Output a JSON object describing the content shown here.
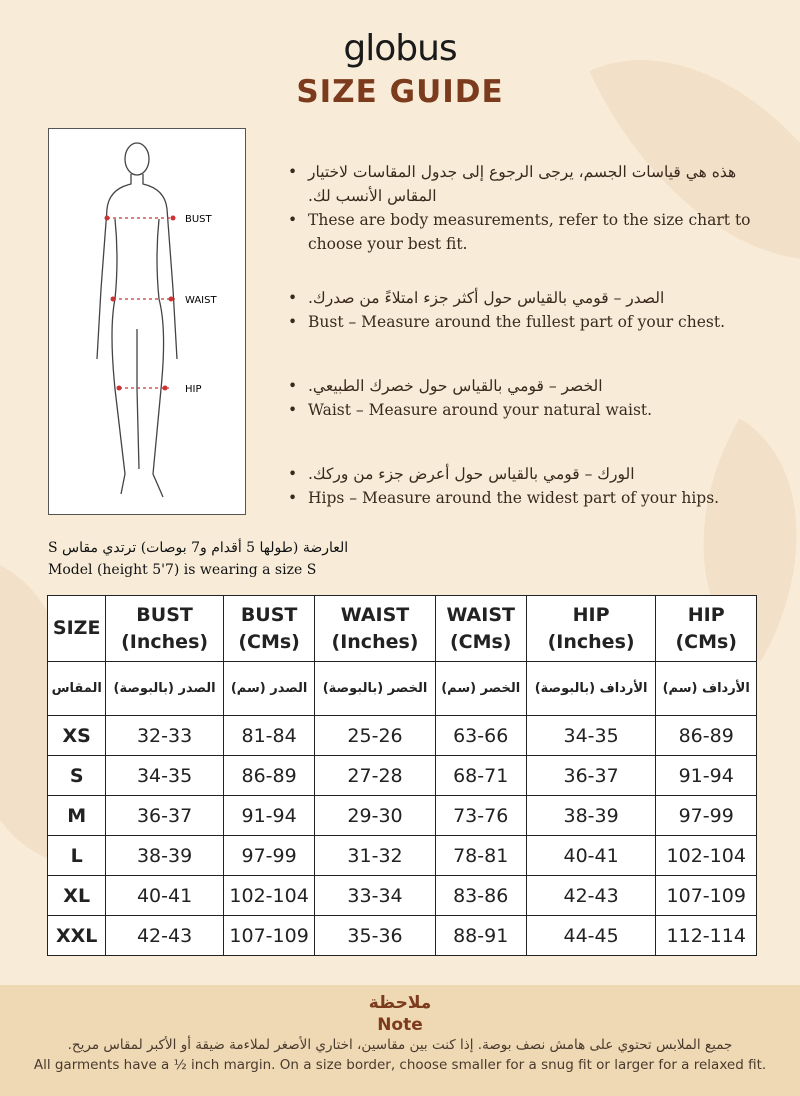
{
  "brand": "globus",
  "title": "SIZE GUIDE",
  "figure": {
    "labels": [
      "BUST",
      "WAIST",
      "HIP"
    ]
  },
  "bullets": [
    {
      "ar": "هذه هي قياسات الجسم، يرجى الرجوع إلى جدول المقاسات لاختيار المقاس الأنسب لك.",
      "en": "These are body measurements, refer to the size chart to choose your best fit."
    },
    {
      "ar": "الصدر – قومي بالقياس حول أكثر جزء امتلاءً من صدرك.",
      "en": "Bust – Measure around the fullest part of your chest."
    },
    {
      "ar": "الخصر – قومي بالقياس حول خصرك الطبيعي.",
      "en": "Waist – Measure around your natural waist."
    },
    {
      "ar": "الورك – قومي بالقياس حول أعرض جزء من وركك.",
      "en": "Hips – Measure around the widest part of your hips."
    }
  ],
  "model": {
    "ar": "العارضة (طولها 5 أقدام و7 بوصات) ترتدي مقاس S",
    "en": "Model (height 5'7) is wearing a size S"
  },
  "table": {
    "headers_en": [
      [
        "SIZE",
        ""
      ],
      [
        "BUST",
        "(Inches)"
      ],
      [
        "BUST",
        "(CMs)"
      ],
      [
        "WAIST",
        "(Inches)"
      ],
      [
        "WAIST",
        "(CMs)"
      ],
      [
        "HIP",
        "(Inches)"
      ],
      [
        "HIP",
        "(CMs)"
      ]
    ],
    "headers_ar": [
      "المقاس",
      "الصدر (بالبوصة)",
      "الصدر (سم)",
      "الخصر (بالبوصة)",
      "الخصر (سم)",
      "الأرداف (بالبوصة)",
      "الأرداف (سم)"
    ],
    "rows": [
      [
        "XS",
        "32-33",
        "81-84",
        "25-26",
        "63-66",
        "34-35",
        "86-89"
      ],
      [
        "S",
        "34-35",
        "86-89",
        "27-28",
        "68-71",
        "36-37",
        "91-94"
      ],
      [
        "M",
        "36-37",
        "91-94",
        "29-30",
        "73-76",
        "38-39",
        "97-99"
      ],
      [
        "L",
        "38-39",
        "97-99",
        "31-32",
        "78-81",
        "40-41",
        "102-104"
      ],
      [
        "XL",
        "40-41",
        "102-104",
        "33-34",
        "83-86",
        "42-43",
        "107-109"
      ],
      [
        "XXL",
        "42-43",
        "107-109",
        "35-36",
        "88-91",
        "44-45",
        "112-114"
      ]
    ]
  },
  "note": {
    "title_ar": "ملاحظة",
    "title_en": "Note",
    "text_ar": "جميع الملابس تحتوي على هامش نصف بوصة. إذا كنت بين مقاسين، اختاري الأصغر لملاءمة ضيقة أو الأكبر لمقاس مريح.",
    "text_en": "All garments have a ½ inch margin. On a size border, choose smaller for a snug fit or larger for a relaxed fit."
  },
  "colors": {
    "accent": "#7b3b1c",
    "background": "#f8ecd9",
    "note_band": "#efd9b4"
  }
}
